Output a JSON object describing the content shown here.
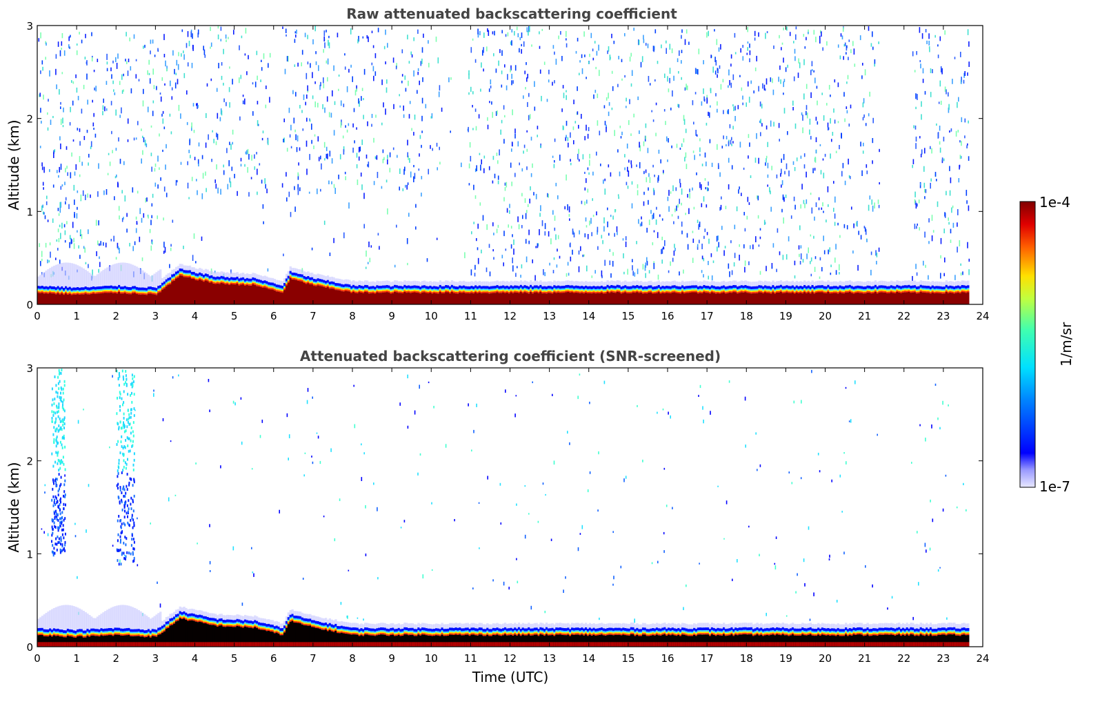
{
  "chart_data": [
    {
      "type": "heatmap",
      "title": "Raw attenuated backscattering coefficient",
      "xlabel": "",
      "ylabel": "Altitude (km)",
      "xlim": [
        0,
        24
      ],
      "ylim": [
        0,
        3
      ],
      "x_ticks": [
        0,
        1,
        2,
        3,
        4,
        5,
        6,
        7,
        8,
        9,
        10,
        11,
        12,
        13,
        14,
        15,
        16,
        17,
        18,
        19,
        20,
        21,
        22,
        23,
        24
      ],
      "y_ticks": [
        0,
        1,
        2,
        3
      ],
      "data_end_time": 23.65,
      "layers": [
        {
          "name_desc": "surface aerosol layer top (km)",
          "time": [
            0,
            1,
            2,
            3,
            3.6,
            4.5,
            5.5,
            6.2,
            6.4,
            7,
            8,
            10,
            12,
            14,
            16,
            18,
            20,
            22,
            23.65
          ],
          "top": [
            0.2,
            0.18,
            0.2,
            0.18,
            0.38,
            0.3,
            0.28,
            0.2,
            0.35,
            0.28,
            0.2,
            0.2,
            0.2,
            0.2,
            0.2,
            0.2,
            0.2,
            0.2,
            0.2
          ]
        }
      ],
      "colorbar": {
        "min_label": "1e-7",
        "max_label": "1e-4",
        "label": "1/m/sr",
        "scale": "log"
      }
    },
    {
      "type": "heatmap",
      "title": "Attenuated backscattering coefficient (SNR-screened)",
      "xlabel": "Time (UTC)",
      "ylabel": "Altitude (km)",
      "xlim": [
        0,
        24
      ],
      "ylim": [
        0,
        3
      ],
      "x_ticks": [
        0,
        1,
        2,
        3,
        4,
        5,
        6,
        7,
        8,
        9,
        10,
        11,
        12,
        13,
        14,
        15,
        16,
        17,
        18,
        19,
        20,
        21,
        22,
        23,
        24
      ],
      "y_ticks": [
        0,
        1,
        2,
        3
      ],
      "data_end_time": 23.65,
      "cloud_columns": [
        {
          "time_start": 0.35,
          "time_end": 0.7,
          "alt_bottom": 1.0,
          "alt_top": 3.0
        },
        {
          "time_start": 2.0,
          "time_end": 2.45,
          "alt_bottom": 0.9,
          "alt_top": 3.0
        }
      ]
    }
  ]
}
